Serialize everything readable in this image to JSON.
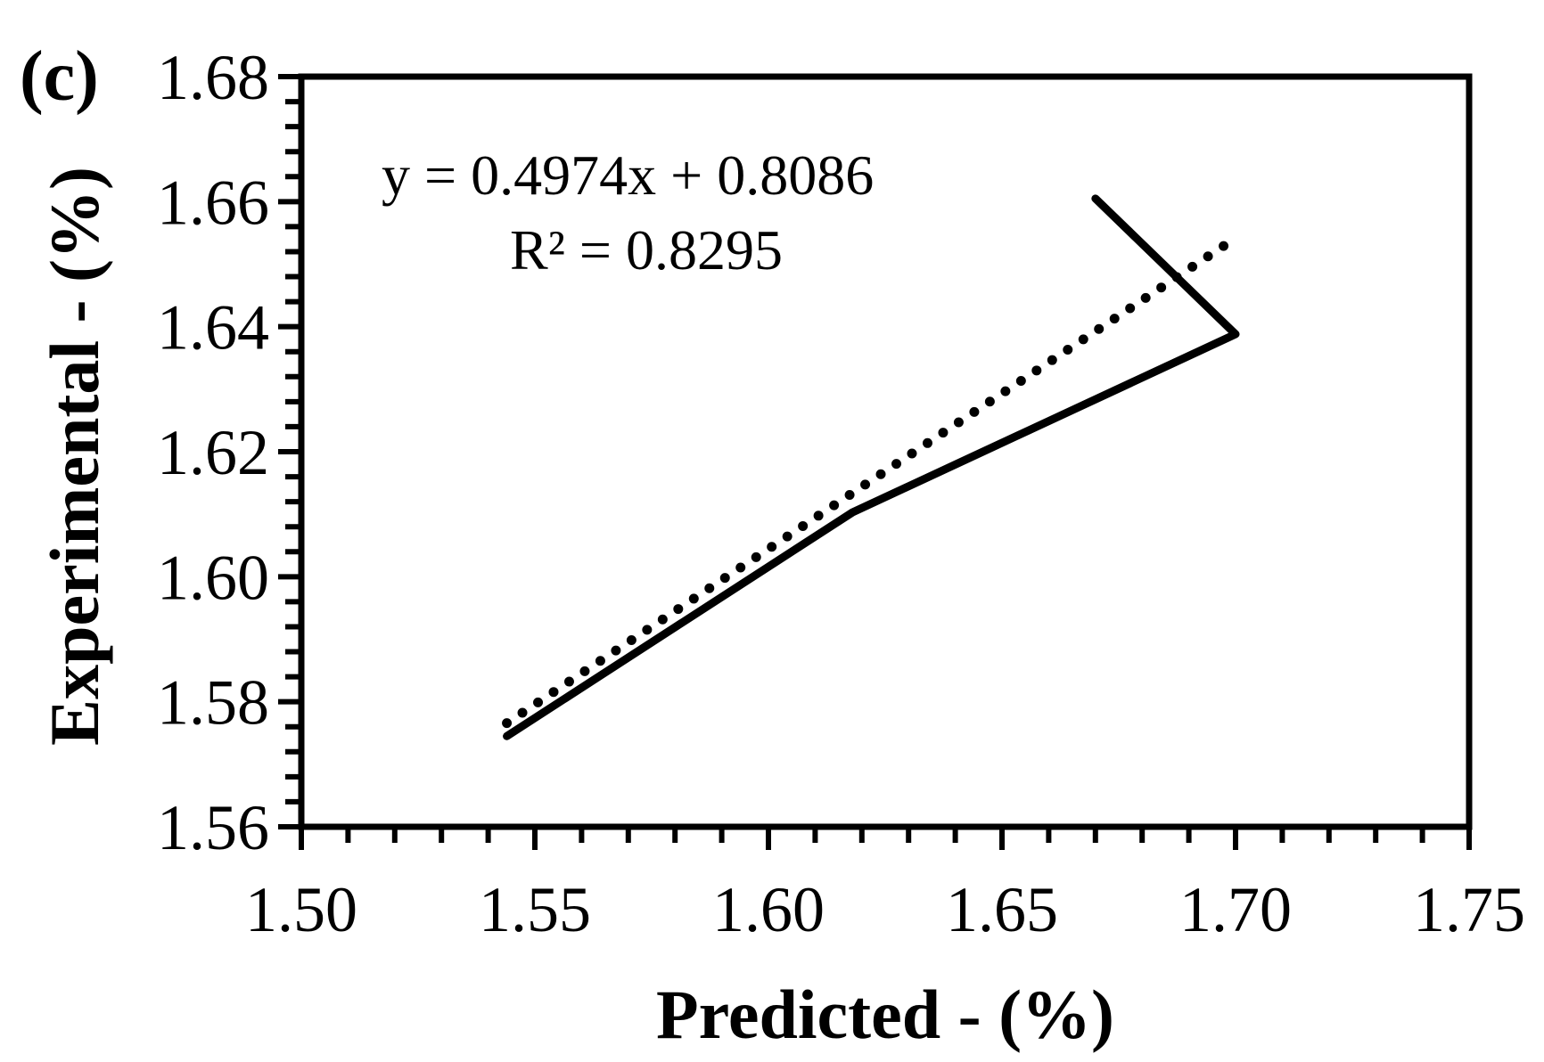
{
  "chart_data": {
    "type": "line",
    "panel_label": "(c)",
    "xlabel": "Predicted - (%)",
    "ylabel": "Experimental - (%)",
    "xlim": [
      1.5,
      1.75
    ],
    "ylim": [
      1.56,
      1.68
    ],
    "x_ticks": [
      1.5,
      1.55,
      1.6,
      1.65,
      1.7,
      1.75
    ],
    "y_ticks": [
      1.56,
      1.58,
      1.6,
      1.62,
      1.64,
      1.66,
      1.68
    ],
    "x_tick_labels": [
      "1.50",
      "1.55",
      "1.60",
      "1.65",
      "1.70",
      "1.75"
    ],
    "y_tick_labels": [
      "1.56",
      "1.58",
      "1.60",
      "1.62",
      "1.64",
      "1.66",
      "1.68"
    ],
    "grid": false,
    "series": [
      {
        "style": "solid",
        "color": "#000000",
        "x": [
          1.544,
          1.618,
          1.7,
          1.67
        ],
        "y": [
          1.5745,
          1.6103,
          1.6388,
          1.6605
        ]
      }
    ],
    "trendline": {
      "style": "dotted",
      "color": "#000000",
      "slope": 0.4974,
      "intercept": 0.8086,
      "x_range": [
        1.544,
        1.7
      ]
    },
    "annotations": {
      "equation": "y = 0.4974x + 0.8086",
      "r_squared": "R² = 0.8295"
    }
  }
}
